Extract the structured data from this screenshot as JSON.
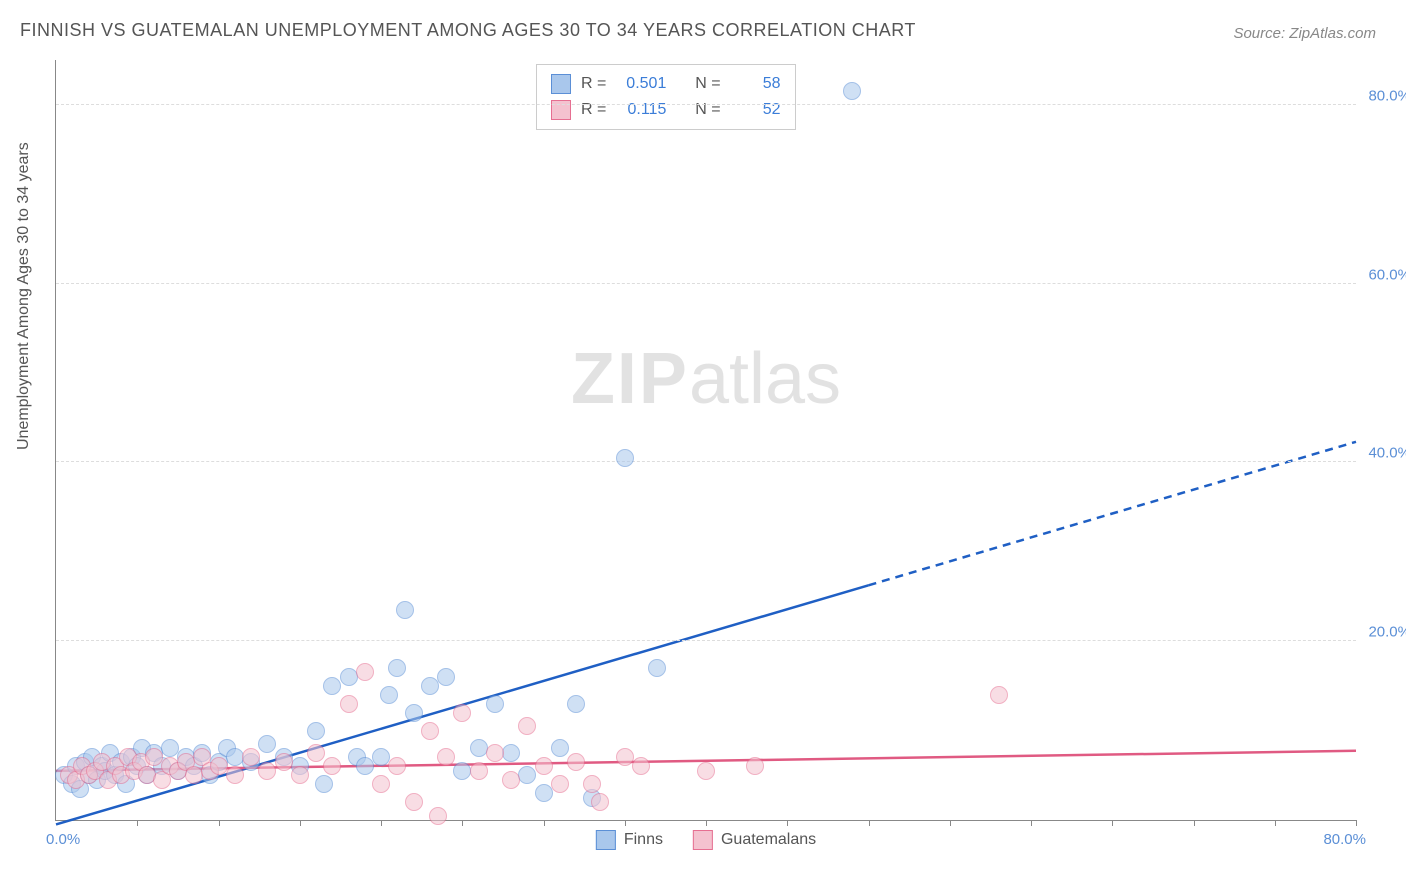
{
  "title": "FINNISH VS GUATEMALAN UNEMPLOYMENT AMONG AGES 30 TO 34 YEARS CORRELATION CHART",
  "source": "Source: ZipAtlas.com",
  "ylabel": "Unemployment Among Ages 30 to 34 years",
  "watermark_bold": "ZIP",
  "watermark_thin": "atlas",
  "chart": {
    "type": "scatter",
    "xlim": [
      0,
      80
    ],
    "ylim": [
      0,
      85
    ],
    "x_origin_label": "0.0%",
    "x_max_label": "80.0%",
    "y_ticks": [
      20,
      40,
      60,
      80
    ],
    "y_tick_labels": [
      "20.0%",
      "40.0%",
      "60.0%",
      "80.0%"
    ],
    "x_minor_ticks": [
      5,
      10,
      15,
      20,
      25,
      30,
      35,
      40,
      45,
      50,
      55,
      60,
      65,
      70,
      75,
      80
    ],
    "grid_color": "#dddddd",
    "axis_color": "#888888",
    "background_color": "#ffffff",
    "ytick_label_color": "#5b8fd6",
    "point_radius": 8,
    "point_opacity": 0.55,
    "series": [
      {
        "key": "finns",
        "label": "Finns",
        "fill": "#a9c7ec",
        "stroke": "#5b8fd6",
        "R": "0.501",
        "N": "58",
        "trend": {
          "slope": 0.535,
          "intercept": -0.5,
          "solid_xmax": 50,
          "dash_xmax": 80,
          "color": "#1f5fc4",
          "width": 2.5
        },
        "points": [
          [
            0.5,
            5
          ],
          [
            1,
            4
          ],
          [
            1.2,
            6
          ],
          [
            1.5,
            3.5
          ],
          [
            1.8,
            6.5
          ],
          [
            2,
            5
          ],
          [
            2.2,
            7
          ],
          [
            2.5,
            4.5
          ],
          [
            2.8,
            6
          ],
          [
            3,
            5.5
          ],
          [
            3.3,
            7.5
          ],
          [
            3.6,
            5
          ],
          [
            4,
            6.5
          ],
          [
            4.3,
            4
          ],
          [
            4.7,
            7
          ],
          [
            5,
            6
          ],
          [
            5.3,
            8
          ],
          [
            5.6,
            5
          ],
          [
            6,
            7.5
          ],
          [
            6.5,
            6
          ],
          [
            7,
            8
          ],
          [
            7.5,
            5.5
          ],
          [
            8,
            7
          ],
          [
            8.5,
            6
          ],
          [
            9,
            7.5
          ],
          [
            9.5,
            5
          ],
          [
            10,
            6.5
          ],
          [
            10.5,
            8
          ],
          [
            11,
            7
          ],
          [
            12,
            6.5
          ],
          [
            13,
            8.5
          ],
          [
            14,
            7
          ],
          [
            15,
            6
          ],
          [
            16,
            10
          ],
          [
            16.5,
            4
          ],
          [
            17,
            15
          ],
          [
            18,
            16
          ],
          [
            18.5,
            7
          ],
          [
            19,
            6
          ],
          [
            20,
            7
          ],
          [
            20.5,
            14
          ],
          [
            21,
            17
          ],
          [
            21.5,
            23.5
          ],
          [
            22,
            12
          ],
          [
            23,
            15
          ],
          [
            24,
            16
          ],
          [
            25,
            5.5
          ],
          [
            26,
            8
          ],
          [
            27,
            13
          ],
          [
            28,
            7.5
          ],
          [
            29,
            5
          ],
          [
            30,
            3
          ],
          [
            31,
            8
          ],
          [
            32,
            13
          ],
          [
            33,
            2.5
          ],
          [
            35,
            40.5
          ],
          [
            37,
            17
          ],
          [
            49,
            81.5
          ]
        ]
      },
      {
        "key": "guatemalans",
        "label": "Guatemalans",
        "fill": "#f4c2cf",
        "stroke": "#e66f91",
        "R": "0.115",
        "N": "52",
        "trend": {
          "slope": 0.028,
          "intercept": 5.5,
          "solid_xmax": 80,
          "dash_xmax": 80,
          "color": "#e05a82",
          "width": 2.5
        },
        "points": [
          [
            0.8,
            5
          ],
          [
            1.2,
            4.5
          ],
          [
            1.6,
            6
          ],
          [
            2,
            5
          ],
          [
            2.4,
            5.5
          ],
          [
            2.8,
            6.5
          ],
          [
            3.2,
            4.5
          ],
          [
            3.6,
            6
          ],
          [
            4,
            5
          ],
          [
            4.4,
            7
          ],
          [
            4.8,
            5.5
          ],
          [
            5.2,
            6.5
          ],
          [
            5.6,
            5
          ],
          [
            6,
            7
          ],
          [
            6.5,
            4.5
          ],
          [
            7,
            6
          ],
          [
            7.5,
            5.5
          ],
          [
            8,
            6.5
          ],
          [
            8.5,
            5
          ],
          [
            9,
            7
          ],
          [
            9.5,
            5.5
          ],
          [
            10,
            6
          ],
          [
            11,
            5
          ],
          [
            12,
            7
          ],
          [
            13,
            5.5
          ],
          [
            14,
            6.5
          ],
          [
            15,
            5
          ],
          [
            16,
            7.5
          ],
          [
            17,
            6
          ],
          [
            18,
            13
          ],
          [
            19,
            16.5
          ],
          [
            20,
            4
          ],
          [
            21,
            6
          ],
          [
            22,
            2
          ],
          [
            23,
            10
          ],
          [
            23.5,
            0.5
          ],
          [
            24,
            7
          ],
          [
            25,
            12
          ],
          [
            26,
            5.5
          ],
          [
            27,
            7.5
          ],
          [
            28,
            4.5
          ],
          [
            29,
            10.5
          ],
          [
            30,
            6
          ],
          [
            31,
            4
          ],
          [
            32,
            6.5
          ],
          [
            33,
            4
          ],
          [
            33.5,
            2
          ],
          [
            35,
            7
          ],
          [
            36,
            6
          ],
          [
            40,
            5.5
          ],
          [
            43,
            6
          ],
          [
            58,
            14
          ]
        ]
      }
    ]
  },
  "stats_labels": {
    "R": "R =",
    "N": "N ="
  },
  "title_fontsize": 18,
  "label_fontsize": 16
}
